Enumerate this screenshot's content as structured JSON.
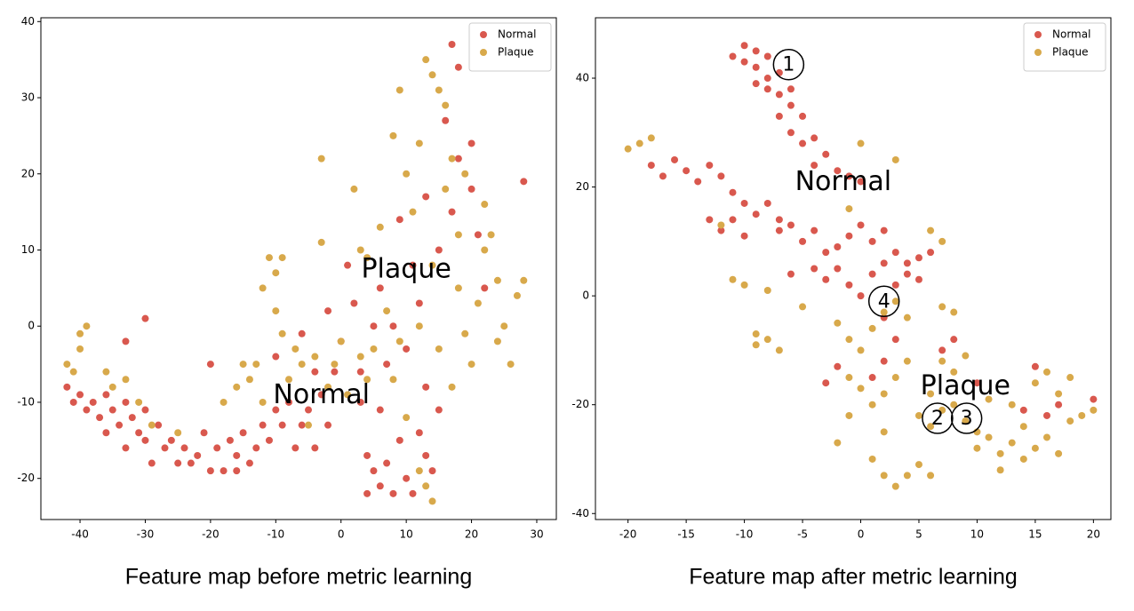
{
  "chart_data": [
    {
      "type": "scatter",
      "caption": "Feature map before metric learning",
      "xlim": [
        -46,
        33
      ],
      "ylim": [
        -25.4,
        40.5
      ],
      "xticks": [
        -40,
        -30,
        -20,
        -10,
        0,
        10,
        20,
        30
      ],
      "yticks": [
        -20,
        -10,
        0,
        10,
        20,
        30,
        40
      ],
      "legend": "upper right",
      "annotations": [
        {
          "text": "Plaque",
          "x": 10,
          "y": 7.5
        },
        {
          "text": "Normal",
          "x": -3,
          "y": -9
        }
      ],
      "series": [
        {
          "name": "Normal",
          "color": "#d9584e",
          "x": [
            -42,
            -41,
            -40,
            -39,
            -38,
            -37,
            -36,
            -36,
            -35,
            -34,
            -33,
            -33,
            -32,
            -31,
            -30,
            -30,
            -29,
            -28,
            -27,
            -26,
            -25,
            -24,
            -23,
            -22,
            -21,
            -20,
            -19,
            -18,
            -17,
            -16,
            -16,
            -15,
            -14,
            -13,
            -12,
            -11,
            -10,
            -9,
            -8,
            -7,
            -6,
            -5,
            -4,
            -3,
            -2,
            -1,
            0,
            1,
            2,
            3,
            4,
            4,
            5,
            6,
            6,
            7,
            8,
            8,
            9,
            10,
            11,
            12,
            13,
            14,
            13,
            10,
            12,
            15,
            17,
            18,
            20,
            22,
            21,
            16,
            18,
            20,
            28,
            17,
            -30,
            -33,
            -20,
            -10,
            -6,
            -2,
            5,
            3,
            7,
            9,
            11,
            13,
            15,
            6,
            -4
          ],
          "values": [
            -8,
            -10,
            -9,
            -11,
            -10,
            -12,
            -9,
            -14,
            -11,
            -13,
            -10,
            -16,
            -12,
            -14,
            -11,
            -15,
            -18,
            -13,
            -16,
            -15,
            -18,
            -16,
            -18,
            -17,
            -14,
            -19,
            -16,
            -19,
            -15,
            -19,
            -17,
            -14,
            -18,
            -16,
            -13,
            -15,
            -11,
            -13,
            -10,
            -16,
            -13,
            -11,
            -16,
            -9,
            -13,
            -6,
            -2,
            8,
            3,
            -10,
            -17,
            -22,
            -19,
            -21,
            5,
            -18,
            -22,
            0,
            -15,
            -20,
            -22,
            -14,
            -17,
            -19,
            -8,
            -3,
            3,
            10,
            15,
            22,
            18,
            5,
            12,
            27,
            34,
            24,
            19,
            37,
            1,
            -2,
            -5,
            -4,
            -1,
            2,
            0,
            -6,
            -5,
            14,
            8,
            17,
            -11,
            -11,
            -6
          ]
        },
        {
          "name": "Plaque",
          "color": "#d8a94b",
          "x": [
            -42,
            -41,
            -40,
            -40,
            -39,
            -36,
            -35,
            -33,
            -31,
            -29,
            -25,
            -18,
            -16,
            -14,
            -12,
            -15,
            -13,
            -12,
            -11,
            -10,
            -9,
            -7,
            -6,
            -4,
            -3,
            -3,
            -2,
            -1,
            0,
            1,
            2,
            3,
            3,
            4,
            5,
            6,
            7,
            8,
            9,
            10,
            8,
            11,
            12,
            13,
            14,
            15,
            16,
            16,
            17,
            18,
            18,
            19,
            20,
            21,
            22,
            23,
            24,
            25,
            26,
            27,
            28,
            24,
            22,
            19,
            14,
            12,
            10,
            12,
            14,
            13,
            17,
            15,
            9,
            4,
            -5,
            -8,
            -10,
            -9
          ],
          "values": [
            -5,
            -6,
            -3,
            -1,
            0,
            -6,
            -8,
            -7,
            -10,
            -13,
            -14,
            -10,
            -8,
            -7,
            -10,
            -5,
            -5,
            5,
            9,
            7,
            9,
            -3,
            -5,
            -4,
            11,
            22,
            -8,
            -5,
            -2,
            -9,
            18,
            -4,
            10,
            -7,
            -3,
            13,
            2,
            -7,
            -2,
            20,
            25,
            15,
            24,
            35,
            33,
            31,
            29,
            18,
            22,
            12,
            5,
            -1,
            -5,
            3,
            10,
            12,
            -2,
            0,
            -5,
            4,
            6,
            6,
            16,
            20,
            8,
            0,
            -12,
            -19,
            -23,
            -21,
            -8,
            -3,
            31,
            9,
            -13,
            -7,
            2,
            -1
          ]
        }
      ]
    },
    {
      "type": "scatter",
      "caption": "Feature map after metric learning",
      "xlim": [
        -22.8,
        21.5
      ],
      "ylim": [
        -41.1,
        51.1
      ],
      "xticks": [
        -20,
        -15,
        -10,
        -5,
        0,
        5,
        10,
        15,
        20
      ],
      "yticks": [
        -40,
        -20,
        0,
        20,
        40
      ],
      "legend": "upper right",
      "annotations": [
        {
          "text": "Normal",
          "x": -1.5,
          "y": 21
        },
        {
          "text": "Plaque",
          "x": 9,
          "y": -16.5
        },
        {
          "text": "1",
          "x": -6.2,
          "y": 42.5,
          "circled": true
        },
        {
          "text": "4",
          "x": 2,
          "y": -1,
          "circled": true
        },
        {
          "text": "2",
          "x": 6.6,
          "y": -22.5,
          "circled": true
        },
        {
          "text": "3",
          "x": 9.1,
          "y": -22.5,
          "circled": true
        }
      ],
      "series": [
        {
          "name": "Normal",
          "color": "#d9584e",
          "x": [
            -10,
            -9,
            -8,
            -10,
            -11,
            -9,
            -8,
            -7,
            -9,
            -8,
            -7,
            -6,
            -6,
            -5,
            -7,
            -6,
            -5,
            -4,
            -3,
            -4,
            -2,
            -1,
            0,
            -18,
            -17,
            -16,
            -15,
            -14,
            -13,
            -12,
            -11,
            -10,
            -9,
            -8,
            -7,
            -11,
            -12,
            -13,
            -10,
            -7,
            -6,
            -5,
            -4,
            -3,
            -2,
            -1,
            0,
            1,
            2,
            3,
            4,
            5,
            -4,
            -3,
            -2,
            -1,
            0,
            1,
            2,
            3,
            4,
            5,
            6,
            -6,
            2,
            3,
            2,
            1,
            -2,
            -3,
            8,
            7,
            15,
            14,
            16,
            17,
            20,
            10
          ],
          "values": [
            46,
            45,
            44,
            43,
            44,
            42,
            40,
            41,
            39,
            38,
            37,
            38,
            35,
            33,
            33,
            30,
            28,
            29,
            26,
            24,
            23,
            22,
            21,
            24,
            22,
            25,
            23,
            21,
            24,
            22,
            19,
            17,
            15,
            17,
            14,
            14,
            12,
            14,
            11,
            12,
            13,
            10,
            12,
            8,
            9,
            11,
            13,
            10,
            12,
            8,
            6,
            7,
            5,
            3,
            5,
            2,
            0,
            4,
            6,
            2,
            4,
            3,
            8,
            4,
            -4,
            -8,
            -12,
            -15,
            -13,
            -16,
            -8,
            -10,
            -13,
            -21,
            -22,
            -20,
            -19,
            -16
          ]
        },
        {
          "name": "Plaque",
          "color": "#d8a94b",
          "x": [
            -20,
            -19,
            -18,
            -12,
            -11,
            -10,
            -9,
            -8,
            -7,
            -9,
            -8,
            0,
            3,
            -1,
            6,
            7,
            -5,
            -2,
            -1,
            0,
            1,
            2,
            3,
            4,
            4,
            3,
            2,
            1,
            -1,
            -2,
            1,
            2,
            3,
            4,
            5,
            6,
            7,
            8,
            7,
            8,
            6,
            7,
            9,
            10,
            11,
            11,
            12,
            13,
            14,
            14,
            15,
            15,
            16,
            17,
            18,
            19,
            10,
            12,
            13,
            16,
            17,
            18,
            20,
            8,
            6,
            -1,
            0,
            2,
            9,
            5
          ],
          "values": [
            27,
            28,
            29,
            13,
            3,
            2,
            -7,
            -8,
            -10,
            -9,
            1,
            28,
            25,
            16,
            12,
            10,
            -2,
            -5,
            -8,
            -10,
            -6,
            -3,
            -1,
            -4,
            -12,
            -15,
            -18,
            -20,
            -22,
            -27,
            -30,
            -33,
            -35,
            -33,
            -31,
            -33,
            -2,
            -3,
            -12,
            -14,
            -18,
            -21,
            -23,
            -25,
            -19,
            -26,
            -29,
            -27,
            -24,
            -30,
            -28,
            -16,
            -26,
            -18,
            -15,
            -22,
            -28,
            -32,
            -20,
            -14,
            -29,
            -23,
            -21,
            -20,
            -24,
            -15,
            -17,
            -25,
            -11,
            -22
          ]
        }
      ]
    }
  ]
}
